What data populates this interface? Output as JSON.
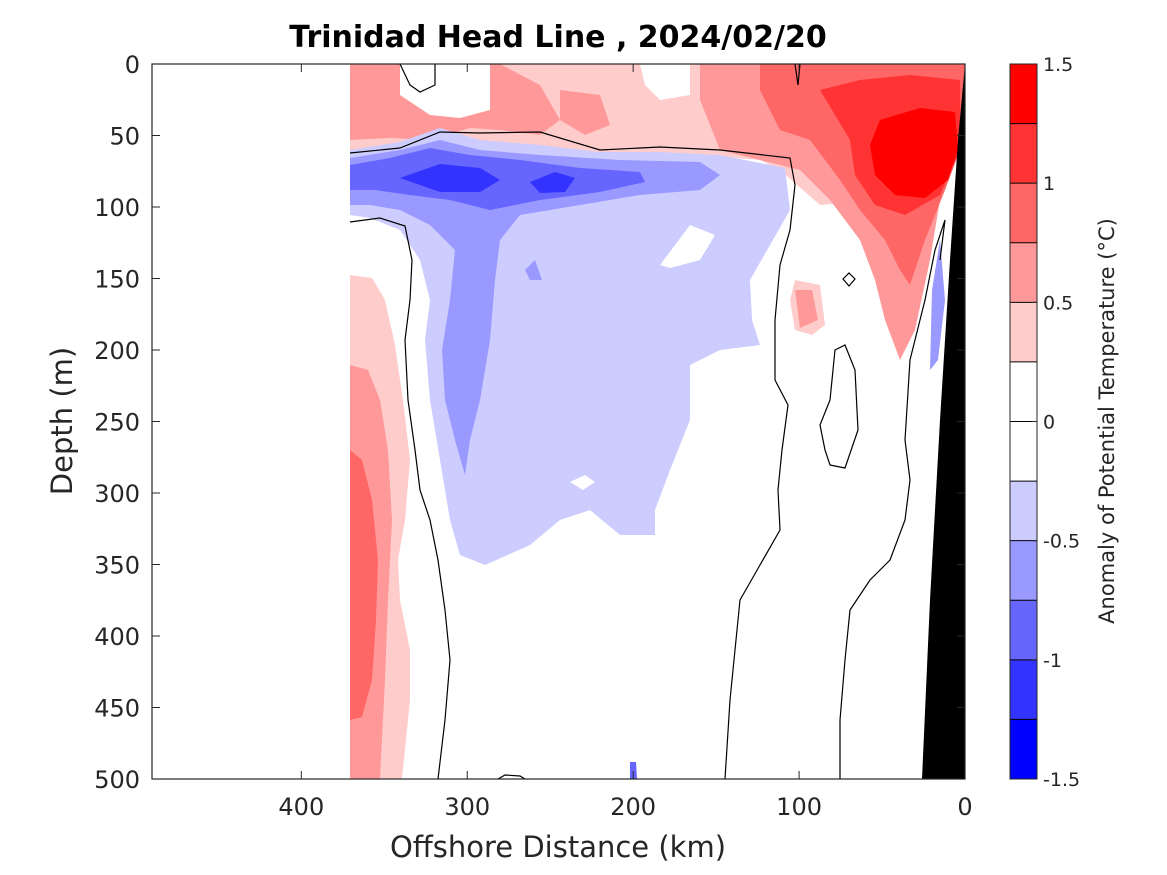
{
  "chart_data": {
    "type": "heatmap",
    "title": "Trinidad Head Line , 2024/02/20",
    "xlabel": "Offshore Distance (km)",
    "ylabel": "Depth (m)",
    "xlim": [
      490,
      0
    ],
    "ylim": [
      0,
      500
    ],
    "y_reversed": true,
    "x_reversed": true,
    "x_ticks": [
      400,
      300,
      200,
      100,
      0
    ],
    "y_ticks": [
      0,
      50,
      100,
      150,
      200,
      250,
      300,
      350,
      400,
      450,
      500
    ],
    "data_x_extent": [
      370,
      0
    ],
    "colorbar": {
      "label": "Anomaly of Potential Temperature (°C)",
      "range": [
        -1.5,
        1.5
      ],
      "levels": [
        -1.5,
        -1.25,
        -1.0,
        -0.75,
        -0.5,
        -0.25,
        0.0,
        0.25,
        0.5,
        0.75,
        1.0,
        1.25,
        1.5
      ],
      "tick_values": [
        -1.5,
        -1,
        -0.5,
        0,
        0.5,
        1,
        1.5
      ],
      "tick_labels": [
        "-1.5",
        "-1",
        "-0.5",
        "0",
        "0.5",
        "1",
        "1.5"
      ],
      "colors": [
        "#0000ff",
        "#3333ff",
        "#6666ff",
        "#9999ff",
        "#ccccff",
        "#ffffff",
        "#ffffff",
        "#ffcccc",
        "#ff9999",
        "#ff6666",
        "#ff3333",
        "#ff0000"
      ]
    },
    "features": {
      "cold_core": {
        "distance_km": [
          300,
          240
        ],
        "depth_m": [
          70,
          100
        ],
        "anomaly_c": -1.1
      },
      "warm_core": {
        "distance_km": [
          40,
          20
        ],
        "depth_m": [
          40,
          110
        ],
        "anomaly_c": 1.3
      },
      "deep_warm_band": {
        "distance_km": [
          370,
          355
        ],
        "depth_m": [
          280,
          460
        ],
        "anomaly_c": 0.85
      },
      "bathymetry_color": "#000000"
    }
  }
}
